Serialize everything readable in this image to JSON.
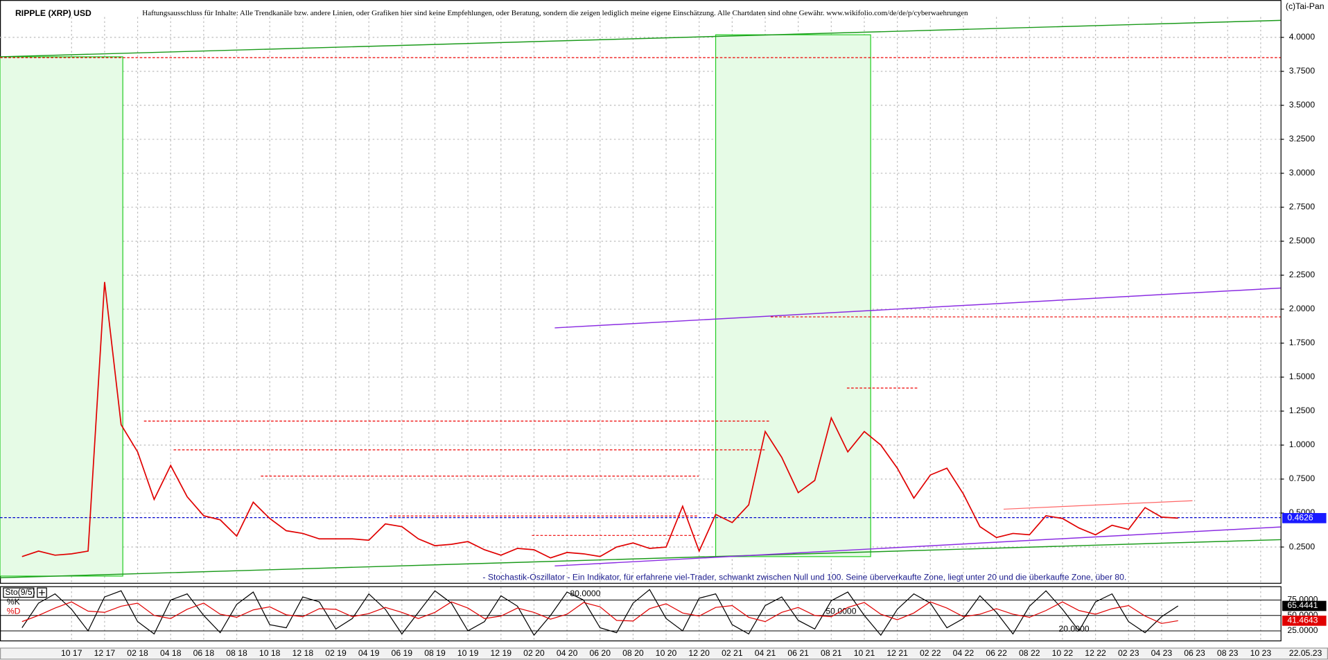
{
  "chart_data": {
    "type": "line",
    "title": "RIPPLE (XRP) USD",
    "disclaimer": "Haftungsausschluss für Inhalte: Alle Trendkanäle bzw. andere Linien, oder Grafiken hier sind keine Empfehlungen, oder Beratung, sondern die zeigen lediglich meine eigene Einschätzung. Alle Chartdaten sind ohne Gewähr. www.wikifolio.com/de/de/p/cyberwaehrungen",
    "copyright": "(c)Tai-Pan",
    "date_label": "22.05.23",
    "categories": [
      null,
      null,
      null,
      "10 17",
      null,
      "12 17",
      null,
      "02 18",
      null,
      "04 18",
      null,
      "06 18",
      null,
      "08 18",
      null,
      "10 18",
      null,
      "12 18",
      null,
      "02 19",
      null,
      "04 19",
      null,
      "06 19",
      null,
      "08 19",
      null,
      "10 19",
      null,
      "12 19",
      null,
      "02 20",
      null,
      "04 20",
      null,
      "06 20",
      null,
      "08 20",
      null,
      "10 20",
      null,
      "12 20",
      null,
      "02 21",
      null,
      "04 21",
      null,
      "06 21",
      null,
      "08 21",
      null,
      "10 21",
      null,
      "12 21",
      null,
      "02 22",
      null,
      "04 22",
      null,
      "06 22",
      null,
      "08 22",
      null,
      "10 22",
      null,
      "12 22",
      null,
      "02 23",
      null,
      "04 23",
      null,
      "06 23",
      null,
      "08 23",
      null,
      "10 23"
    ],
    "series": [
      {
        "color": "#e00000",
        "values": [
          0.18,
          0.22,
          0.19,
          0.2,
          0.22,
          2.2,
          1.15,
          0.95,
          0.6,
          0.85,
          0.62,
          0.48,
          0.45,
          0.33,
          0.58,
          0.46,
          0.37,
          0.35,
          0.31,
          0.31,
          0.31,
          0.3,
          0.42,
          0.4,
          0.31,
          0.26,
          0.27,
          0.29,
          0.23,
          0.19,
          0.24,
          0.23,
          0.17,
          0.21,
          0.2,
          0.18,
          0.25,
          0.28,
          0.24,
          0.25,
          0.55,
          0.22,
          0.49,
          0.43,
          0.56,
          1.1,
          0.91,
          0.65,
          0.74,
          1.2,
          0.95,
          1.1,
          1.0,
          0.83,
          0.61,
          0.78,
          0.83,
          0.64,
          0.4,
          0.32,
          0.35,
          0.34,
          0.48,
          0.46,
          0.39,
          0.34,
          0.41,
          0.38,
          0.54,
          0.47,
          0.4626,
          null,
          null,
          null,
          null,
          null
        ]
      }
    ],
    "ylim": [
      -0.02,
      4.15
    ],
    "yticks": [
      {
        "value": 0.25,
        "label": "0.2500"
      },
      {
        "value": 0.5,
        "label": "0.5000"
      },
      {
        "value": 0.75,
        "label": "0.7500"
      },
      {
        "value": 1,
        "label": "1.0000"
      },
      {
        "value": 1.25,
        "label": "1.2500"
      },
      {
        "value": 1.5,
        "label": "1.5000"
      },
      {
        "value": 1.75,
        "label": "1.7500"
      },
      {
        "value": 2,
        "label": "2.0000"
      },
      {
        "value": 2.25,
        "label": "2.2500"
      },
      {
        "value": 2.5,
        "label": "2.5000"
      },
      {
        "value": 2.75,
        "label": "2.7500"
      },
      {
        "value": 3,
        "label": "3.0000"
      },
      {
        "value": 3.25,
        "label": "3.2500"
      },
      {
        "value": 3.5,
        "label": "3.5000"
      },
      {
        "value": 3.75,
        "label": "3.7500"
      },
      {
        "value": 4,
        "label": "4.0000"
      }
    ],
    "grid": true,
    "indicator": {
      "name": "Sto(9/5)",
      "description": "- Stochastik-Oszillator - Ein Indikator, für erfahrene viel-Trader, schwankt zwischen Null und 100. Seine überverkaufte Zone, liegt unter 20 und die überkaufte Zone, über 80.",
      "annotations": [
        "80.0000",
        "50.0000",
        "20.0000"
      ],
      "ylim": [
        8,
        96
      ],
      "yticks": [
        {
          "value": 25,
          "label": "25.0000"
        },
        {
          "value": 50,
          "label": "50.0000"
        },
        {
          "value": 75,
          "label": "75.0000"
        }
      ],
      "series": [
        {
          "name": "%K",
          "color": "#000000",
          "values": [
            30,
            70,
            85,
            60,
            25,
            80,
            90,
            40,
            20,
            75,
            85,
            50,
            22,
            68,
            88,
            35,
            30,
            80,
            72,
            28,
            45,
            85,
            60,
            20,
            55,
            90,
            70,
            25,
            40,
            82,
            65,
            18,
            50,
            88,
            75,
            30,
            22,
            70,
            92,
            45,
            25,
            78,
            85,
            35,
            20,
            66,
            80,
            42,
            28,
            74,
            88,
            50,
            18,
            60,
            85,
            70,
            30,
            45,
            82,
            55,
            20,
            65,
            90,
            60,
            25,
            72,
            85,
            40,
            22,
            48,
            65.4441,
            null,
            null,
            null,
            null,
            null
          ]
        },
        {
          "name": "%D",
          "color": "#e00000",
          "values": [
            40,
            50,
            62,
            72,
            57,
            55,
            65,
            70,
            50,
            45,
            60,
            70,
            52,
            47,
            59,
            64,
            51,
            48,
            61,
            60,
            48,
            53,
            63,
            55,
            45,
            55,
            72,
            62,
            45,
            49,
            62,
            55,
            44,
            52,
            71,
            64,
            42,
            41,
            61,
            69,
            54,
            49,
            63,
            66,
            47,
            40,
            55,
            63,
            50,
            48,
            63,
            71,
            52,
            43,
            54,
            72,
            62,
            48,
            52,
            61,
            52,
            47,
            58,
            72,
            58,
            52,
            61,
            66,
            49,
            37,
            41.4643,
            null,
            null,
            null,
            null,
            null
          ]
        }
      ]
    }
  }
}
